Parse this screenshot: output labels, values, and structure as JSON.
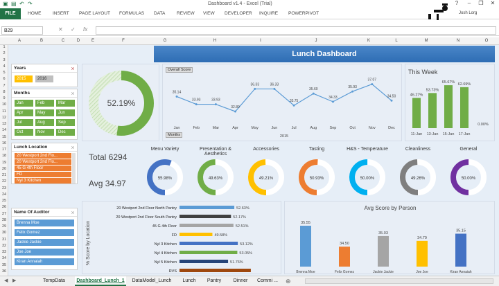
{
  "window": {
    "title": "Dashboard v1.4 - Excel (Trial)",
    "minimize": "–",
    "restore": "❐",
    "close": "✕"
  },
  "ribbon": {
    "file": "FILE",
    "tabs": [
      "HOME",
      "INSERT",
      "PAGE LAYOUT",
      "FORMULAS",
      "DATA",
      "REVIEW",
      "VIEW",
      "DEVELOPER",
      "INQUIRE",
      "POWERPIVOT"
    ],
    "user": "Josh Lorg",
    "help": "?"
  },
  "formula_bar": {
    "name_box": "B29",
    "fx": "fx",
    "cancel": "✕",
    "enter": "✓"
  },
  "columns": [
    "A",
    "B",
    "C",
    "D",
    "E",
    "F",
    "G",
    "H",
    "I",
    "J",
    "K",
    "L",
    "M",
    "N",
    "O"
  ],
  "rows": [
    "1",
    "2",
    "3",
    "4",
    "5",
    "6",
    "7",
    "8",
    "9",
    "10",
    "11",
    "12",
    "13",
    "14",
    "15",
    "16",
    "17",
    "18",
    "19",
    "20",
    "21",
    "22",
    "23",
    "24",
    "25",
    "26",
    "27",
    "28",
    "29",
    "30",
    "31",
    "32",
    "33",
    "34",
    "35",
    "36"
  ],
  "dashboard": {
    "title": "Lunch Dashboard",
    "donut_pct": "52.19%",
    "total": "Total 6294",
    "avg": "Avg 34.97"
  },
  "slicers": {
    "years": {
      "title": "Years",
      "items": [
        "2015",
        "2016"
      ]
    },
    "months": {
      "title": "Months",
      "items": [
        "Jan",
        "Feb",
        "Mar",
        "Apr",
        "May",
        "Jun",
        "Jul",
        "Aug",
        "Sep",
        "Oct",
        "Nov",
        "Dec"
      ]
    },
    "location": {
      "title": "Lunch Location",
      "items": [
        "20 Westport 2nd Flo...",
        "20 Westport 2nd Flo...",
        "45 G 4th Floor",
        "FD",
        "Nyl 3 Kitchen"
      ]
    },
    "auditor": {
      "title": "Name Of Auditor",
      "items": [
        "Brenna Moe",
        "Felix Gomez",
        "Jackie Jackie",
        "Joe Joe",
        "Kiran Annaiah"
      ]
    }
  },
  "gauges": [
    {
      "label": "Menu Variety",
      "value": "55.98%",
      "pct": 55.98,
      "color": "#4472c4"
    },
    {
      "label": "Presentation & Aesthetics",
      "value": "49.63%",
      "pct": 49.63,
      "color": "#70ad47"
    },
    {
      "label": "Accessories",
      "value": "49.21%",
      "pct": 49.21,
      "color": "#ffc000"
    },
    {
      "label": "Tasting",
      "value": "50.93%",
      "pct": 50.93,
      "color": "#ed7d31"
    },
    {
      "label": "H&S - Temperature",
      "value": "50.00%",
      "pct": 50.0,
      "color": "#00b0f0"
    },
    {
      "label": "Cleanliness",
      "value": "49.26%",
      "pct": 49.26,
      "color": "#7f7f7f"
    },
    {
      "label": "General",
      "value": "50.00%",
      "pct": 50.0,
      "color": "#7030a0"
    }
  ],
  "sheet_tabs": [
    "TempData",
    "Dashboard_Lunch_1",
    "DataModel_Lunch",
    "Lunch",
    "Pantry",
    "Dinner",
    "Commi ..."
  ],
  "chart_data": [
    {
      "type": "line",
      "title": "",
      "button": "Overall Score",
      "field_button": "Months",
      "xlabel": "2015",
      "categories": [
        "Jan",
        "Feb",
        "Mar",
        "Apr",
        "May",
        "Jun",
        "Jul",
        "Aug",
        "Sep",
        "Oct",
        "Nov",
        "Dec"
      ],
      "series": [
        {
          "values": [
            35.14,
            33.93,
            33.93,
            32.8,
            36.33,
            36.33,
            33.75,
            35.6,
            34.33,
            35.93,
            37.07,
            34.5
          ]
        }
      ],
      "ylim": [
        31.5,
        38
      ]
    },
    {
      "type": "bar",
      "title": "This Week",
      "categories": [
        "11-Jan",
        "13-Jan",
        "15-Jan",
        "17-Jan"
      ],
      "values": [
        46.27,
        53.73,
        65.67,
        62.69
      ],
      "extra_label": "0.00%",
      "colors": {
        "bar": "#70ad47"
      },
      "ylim": [
        0,
        70
      ]
    },
    {
      "type": "bar",
      "orientation": "horizontal",
      "ylabel": "% Score by Location",
      "categories": [
        "20 Westport 2nd Floor North Pantry",
        "20 Westport 2nd Floor South Pantry",
        "45 G 4th Floor",
        "FD",
        "Nyl 3 Kitchen",
        "Nyl 4 Kitchen",
        "Nyl 5 Kitchen",
        "RVS"
      ],
      "values": [
        52.63,
        52.17,
        52.51,
        49.58,
        53.12,
        53.05,
        51.76,
        54.93
      ],
      "labels": [
        "52.63%",
        "52.17%",
        "52.51%",
        "49.58%",
        "53.12%",
        "53.05%",
        "51.76%",
        ""
      ],
      "colors": [
        "#5b9bd5",
        "#404040",
        "#a5a5a5",
        "#ffc000",
        "#4472c4",
        "#70ad47",
        "#264478",
        "#9e480e"
      ],
      "xlim": [
        45,
        56
      ]
    },
    {
      "type": "bar",
      "title": "Avg Score by Person",
      "categories": [
        "Brenna Moe",
        "Felix Gomez",
        "Jackie Jackie",
        "Joe Joe",
        "Kiran Annaiah"
      ],
      "values": [
        35.55,
        34.5,
        35.03,
        34.79,
        35.15
      ],
      "colors": [
        "#5b9bd5",
        "#ed7d31",
        "#a5a5a5",
        "#ffc000",
        "#4472c4"
      ],
      "ylim": [
        33.5,
        36
      ]
    }
  ]
}
